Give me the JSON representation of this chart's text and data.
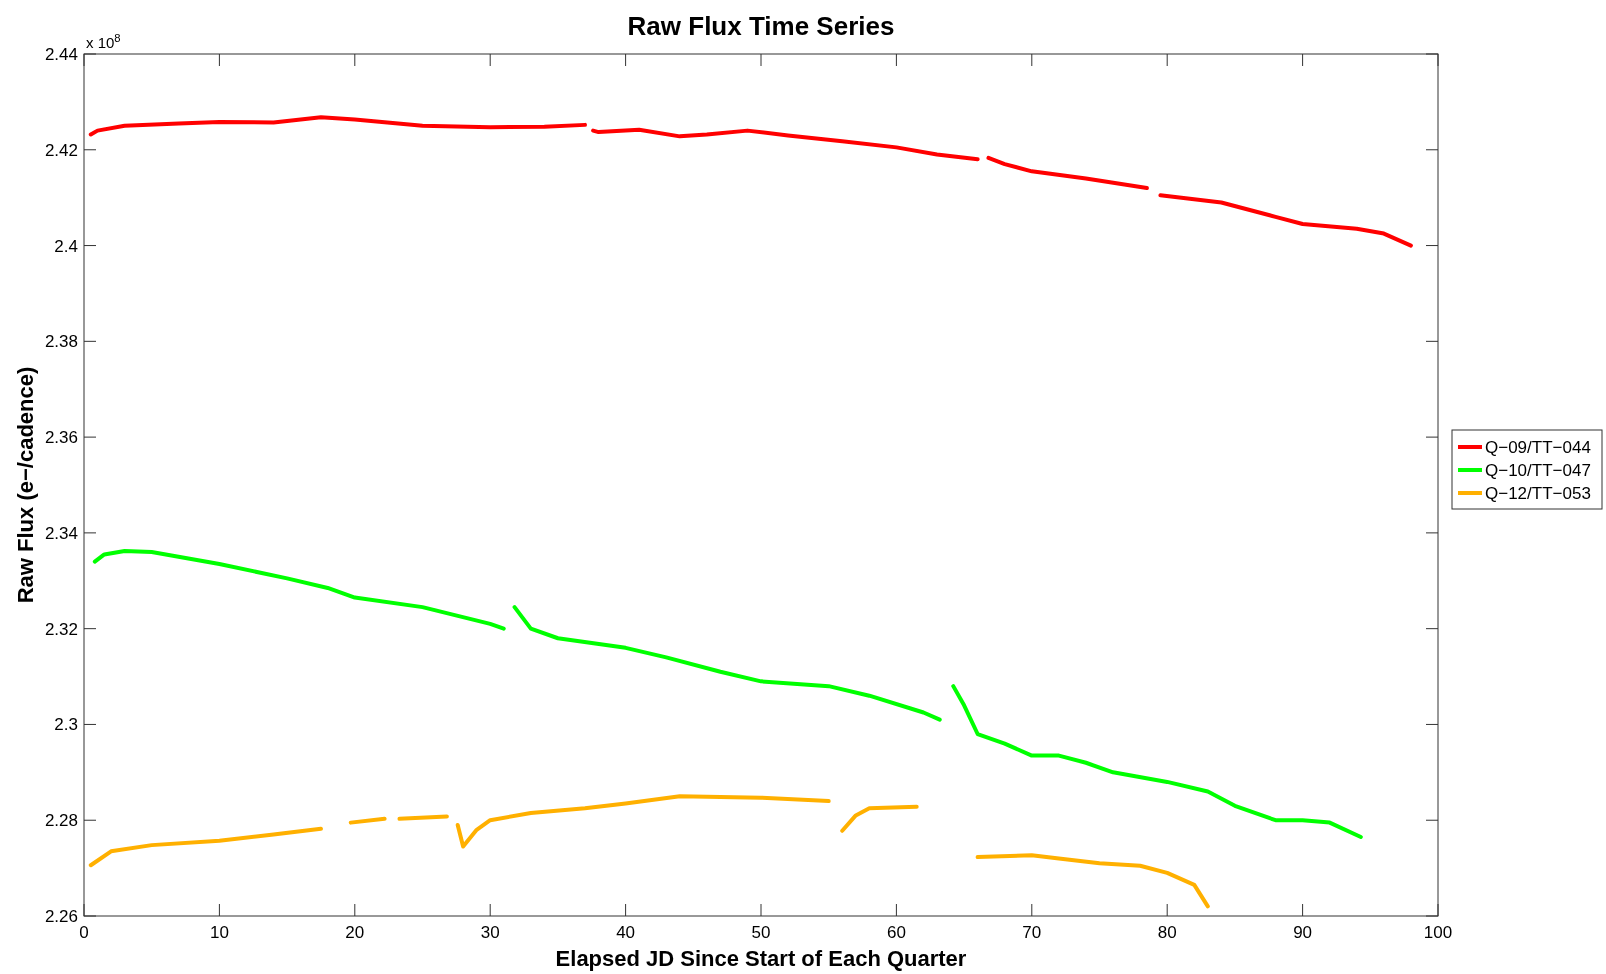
{
  "chart_data": {
    "type": "line",
    "title": "Raw Flux Time Series",
    "xlabel": "Elapsed JD Since Start of Each Quarter",
    "ylabel": "Raw Flux (e−/cadence)",
    "annotations": [
      "x 10$^{8}$"
    ],
    "xlim": [
      0,
      100
    ],
    "ylim": [
      2.26,
      2.44
    ],
    "xticks": [
      0,
      10,
      20,
      30,
      40,
      50,
      60,
      70,
      80,
      90,
      100
    ],
    "yticks": [
      2.26,
      2.28,
      2.3,
      2.32,
      2.34,
      2.36,
      2.38,
      2.4,
      2.42,
      2.44
    ],
    "grid": false,
    "legend": "right",
    "marker": "none",
    "line_style": "solid",
    "series": [
      {
        "name": "Q−09/TT−044",
        "color": "#ff0000",
        "x": [
          0.5,
          1,
          3,
          7,
          10,
          14,
          17.5,
          20,
          25,
          30,
          34,
          37,
          37.5,
          37.6,
          38,
          41,
          44,
          46,
          49,
          52,
          56,
          60,
          63,
          66,
          66.4,
          66.8,
          68,
          70,
          74,
          78.5,
          79,
          79.5,
          84,
          88,
          90,
          94,
          96,
          98
        ],
        "values": [
          2.4232,
          2.424,
          2.425,
          2.4255,
          2.4258,
          2.4257,
          2.4268,
          2.4263,
          2.425,
          2.4247,
          2.4248,
          2.4252,
          null,
          2.424,
          2.4237,
          2.4242,
          2.4228,
          2.4232,
          2.424,
          2.423,
          2.4218,
          2.4205,
          2.419,
          2.418,
          null,
          2.4183,
          2.417,
          2.4155,
          2.414,
          2.412,
          null,
          2.4105,
          2.409,
          2.406,
          2.4045,
          2.4035,
          2.4025,
          2.4
        ]
      },
      {
        "name": "Q−10/TT−047",
        "color": "#00ff00",
        "x": [
          0.8,
          1.5,
          3,
          5,
          10,
          15,
          18,
          20,
          25,
          30,
          31,
          31.4,
          31.8,
          33,
          35,
          40,
          43,
          47,
          50,
          55,
          58,
          62,
          63.2,
          63.7,
          64.2,
          65,
          66,
          68,
          70,
          72,
          74,
          76,
          80,
          83,
          85,
          88,
          90,
          92,
          94.3
        ],
        "values": [
          2.334,
          2.3355,
          2.3362,
          2.336,
          2.3335,
          2.3305,
          2.3285,
          2.3265,
          2.3245,
          2.321,
          2.32,
          null,
          2.3245,
          2.32,
          2.318,
          2.316,
          2.314,
          2.311,
          2.309,
          2.308,
          2.306,
          2.3025,
          2.301,
          null,
          2.308,
          2.304,
          2.298,
          2.296,
          2.2935,
          2.2935,
          2.292,
          2.29,
          2.288,
          2.286,
          2.283,
          2.28,
          2.28,
          2.2795,
          2.2765
        ]
      },
      {
        "name": "Q−12/TT−053",
        "color": "#ffb000",
        "x": [
          0.5,
          2,
          5,
          10,
          14,
          17.5,
          18.5,
          19.7,
          22.2,
          22.7,
          23.3,
          26.8,
          27.2,
          27.6,
          28,
          29,
          30,
          33,
          37,
          40,
          44,
          50,
          55,
          55.5,
          56,
          57,
          58,
          61.5,
          64,
          66,
          70,
          72,
          75,
          78,
          80,
          82,
          83
        ],
        "values": [
          2.2706,
          2.2735,
          2.2748,
          2.2757,
          2.277,
          2.2782,
          null,
          2.2795,
          2.2803,
          null,
          2.2803,
          2.2808,
          null,
          2.279,
          2.2745,
          2.278,
          2.28,
          2.2815,
          2.2825,
          2.2835,
          2.285,
          2.2847,
          2.284,
          null,
          2.2778,
          2.281,
          2.2825,
          2.2828,
          null,
          2.2723,
          2.2727,
          2.272,
          2.271,
          2.2705,
          2.269,
          2.2665,
          2.262
        ]
      }
    ]
  }
}
